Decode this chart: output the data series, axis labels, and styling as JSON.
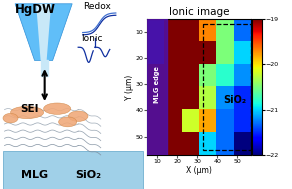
{
  "title": "Ionic image",
  "xlabel": "X (μm)",
  "ylabel": "Y (μm)",
  "hgdw_label": "HgDW",
  "redox_label": "Redox",
  "ionic_label": "Ionic",
  "sei_label": "SEI",
  "mlg_label": "MLG",
  "sio2_label": "SiO₂",
  "sio2_bottom_label": "SiO₂",
  "mlg_edge_label": "MLG edge",
  "colorbar_ticks": [
    -19,
    -20,
    -21,
    -22
  ],
  "xticks": [
    10,
    20,
    30,
    40,
    50
  ],
  "yticks": [
    10,
    20,
    30,
    40,
    50
  ],
  "img_data": [
    [
      -21.5,
      -19.0,
      -19.0,
      -19.7,
      -20.5,
      -21.3
    ],
    [
      -21.5,
      -19.0,
      -19.0,
      -18.8,
      -20.5,
      -21.0
    ],
    [
      -19.0,
      -19.0,
      -19.0,
      -20.5,
      -20.8,
      -21.2
    ],
    [
      -19.0,
      -19.0,
      -19.0,
      -20.3,
      -21.2,
      -21.5
    ],
    [
      -19.0,
      -19.0,
      -20.2,
      -19.8,
      -21.3,
      -21.5
    ],
    [
      -19.0,
      -19.0,
      -19.0,
      -21.0,
      -21.3,
      -22.0
    ]
  ],
  "tip_color": "#60bef8",
  "tip_edge_color": "#3090d8",
  "tip_inner_color": "#c8e8f8",
  "curve_color_dark": "#1030a0",
  "curve_color_light": "#4070d0",
  "mlg_edge_bg": "#5010a0",
  "substrate_color": "#a0d0e8",
  "substrate_edge": "#70b0d0",
  "layer_color": "#8090a0",
  "sei_fill": "#f0a878",
  "sei_edge": "#d08848"
}
